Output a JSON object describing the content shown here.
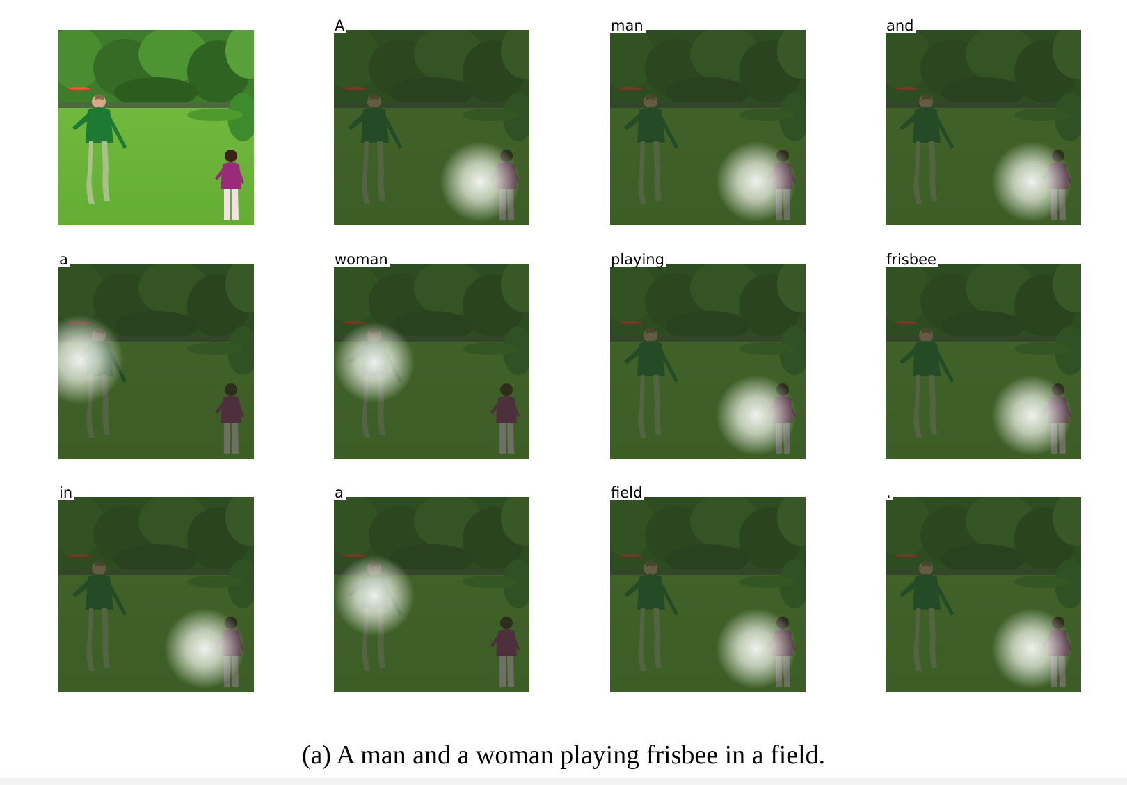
{
  "figure": {
    "panels": [
      {
        "word": "",
        "attention": null
      },
      {
        "word": "A",
        "attention": "child"
      },
      {
        "word": "man",
        "attention": "child"
      },
      {
        "word": "and",
        "attention": "child"
      },
      {
        "word": "a",
        "attention": "woman-left"
      },
      {
        "word": "woman",
        "attention": "woman-right"
      },
      {
        "word": "playing",
        "attention": "child"
      },
      {
        "word": "frisbee",
        "attention": "child"
      },
      {
        "word": "in",
        "attention": "child"
      },
      {
        "word": "a",
        "attention": "woman-right"
      },
      {
        "word": "field",
        "attention": "child"
      },
      {
        "word": ".",
        "attention": "child"
      }
    ],
    "caption": "(a) A man and a woman playing frisbee in a field."
  },
  "colors": {
    "grass": "#6fb83a",
    "trees": "#3f7a2a",
    "shirt": "#1e7a32",
    "frisbee": "#e0341c",
    "child": "#9a2a7a",
    "overlay": "#27331f"
  }
}
